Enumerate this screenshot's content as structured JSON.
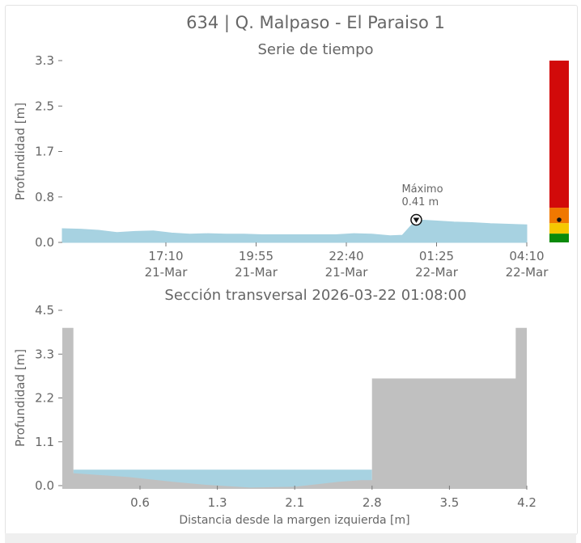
{
  "header": {
    "title": "634 | Q. Malpaso - El Paraiso 1"
  },
  "colors": {
    "water": "#a7d2e1",
    "ground": "#c0c0c0",
    "text": "#666666",
    "alert_red": "#d20a0a",
    "alert_orange": "#f07800",
    "alert_yellow": "#f5c800",
    "alert_green": "#0a8a0a"
  },
  "chart_data": [
    {
      "type": "area",
      "title": "Serie de tiempo",
      "xlabel": "",
      "ylabel": "Profundidad [m]",
      "x_ticks": [
        {
          "time": "17:10",
          "date": "21-Mar"
        },
        {
          "time": "19:55",
          "date": "21-Mar"
        },
        {
          "time": "22:40",
          "date": "21-Mar"
        },
        {
          "time": "01:25",
          "date": "22-Mar"
        },
        {
          "time": "04:10",
          "date": "22-Mar"
        }
      ],
      "y_ticks": [
        "0.0",
        "0.8",
        "1.7",
        "2.5",
        "3.3"
      ],
      "ylim": [
        0,
        3.3
      ],
      "xlim": [
        "2026-03-21 15:25",
        "2026-03-22 04:10"
      ],
      "series": [
        {
          "x": [
            "2026-03-21 15:25",
            "2026-03-21 15:55",
            "2026-03-21 16:25",
            "2026-03-21 16:55",
            "2026-03-21 17:25",
            "2026-03-21 17:55",
            "2026-03-21 18:25",
            "2026-03-21 18:55",
            "2026-03-21 19:25",
            "2026-03-21 19:55",
            "2026-03-21 20:25",
            "2026-03-21 20:55",
            "2026-03-21 21:25",
            "2026-03-21 21:55",
            "2026-03-21 22:25",
            "2026-03-21 22:55",
            "2026-03-21 23:25",
            "2026-03-21 23:55",
            "2026-03-22 00:25",
            "2026-03-22 00:45",
            "2026-03-22 01:08",
            "2026-03-22 01:40",
            "2026-03-22 02:10",
            "2026-03-22 02:40",
            "2026-03-22 03:10",
            "2026-03-22 03:40",
            "2026-03-22 04:10"
          ],
          "y": [
            0.25,
            0.24,
            0.22,
            0.18,
            0.2,
            0.21,
            0.17,
            0.15,
            0.16,
            0.15,
            0.15,
            0.14,
            0.14,
            0.14,
            0.14,
            0.14,
            0.16,
            0.15,
            0.12,
            0.13,
            0.41,
            0.39,
            0.37,
            0.36,
            0.34,
            0.33,
            0.32
          ]
        }
      ],
      "annotation": {
        "label": "Máximo",
        "value_label": "0.41 m",
        "x": "2026-03-22 01:08",
        "y": 0.41
      },
      "alert_bar": {
        "levels": [
          {
            "from": 0,
            "to": 0.16
          },
          {
            "from": 0.16,
            "to": 0.35
          },
          {
            "from": 0.35,
            "to": 0.63
          },
          {
            "from": 0.63,
            "to": 3.3
          }
        ],
        "marker": 0.41
      }
    },
    {
      "type": "area",
      "title": "Sección transversal 2026-03-22 01:08:00",
      "xlabel": "Distancia desde la margen izquierda [m]",
      "ylabel": "Profundidad [m]",
      "x_ticks": [
        "0.6",
        "1.3",
        "2.1",
        "2.8",
        "3.5",
        "4.2"
      ],
      "y_ticks": [
        "0.0",
        "1.1",
        "2.2",
        "3.3",
        "4.5"
      ],
      "xlim": [
        0,
        4.2
      ],
      "ylim": [
        0,
        4.5
      ],
      "ground": {
        "x": [
          0,
          0,
          0.1,
          0.1,
          0.6,
          1.0,
          1.3,
          1.7,
          2.1,
          2.5,
          2.7,
          2.8,
          2.8,
          4.1,
          4.1,
          4.2,
          4.2
        ],
        "y": [
          0,
          4.05,
          4.05,
          0.32,
          0.22,
          0.1,
          0.02,
          -0.05,
          -0.03,
          0.1,
          0.14,
          0.14,
          2.75,
          2.75,
          4.05,
          4.05,
          0
        ]
      },
      "water_level": 0.41,
      "water_extent": [
        0.1,
        2.8
      ]
    }
  ]
}
